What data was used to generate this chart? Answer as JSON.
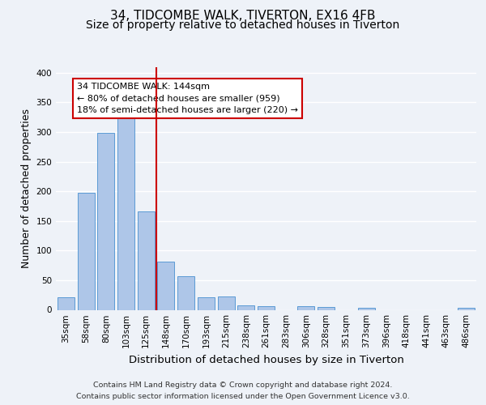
{
  "title": "34, TIDCOMBE WALK, TIVERTON, EX16 4FB",
  "subtitle": "Size of property relative to detached houses in Tiverton",
  "xlabel": "Distribution of detached houses by size in Tiverton",
  "ylabel": "Number of detached properties",
  "bar_labels": [
    "35sqm",
    "58sqm",
    "80sqm",
    "103sqm",
    "125sqm",
    "148sqm",
    "170sqm",
    "193sqm",
    "215sqm",
    "238sqm",
    "261sqm",
    "283sqm",
    "306sqm",
    "328sqm",
    "351sqm",
    "373sqm",
    "396sqm",
    "418sqm",
    "441sqm",
    "463sqm",
    "486sqm"
  ],
  "bar_values": [
    21,
    197,
    298,
    323,
    166,
    82,
    57,
    21,
    23,
    8,
    6,
    0,
    6,
    5,
    0,
    4,
    0,
    0,
    0,
    0,
    3
  ],
  "bar_color": "#aec6e8",
  "bar_edge_color": "#5b9bd5",
  "marker_index": 5,
  "marker_line_color": "#cc0000",
  "annotation_line1": "34 TIDCOMBE WALK: 144sqm",
  "annotation_line2": "← 80% of detached houses are smaller (959)",
  "annotation_line3": "18% of semi-detached houses are larger (220) →",
  "ylim": [
    0,
    410
  ],
  "yticks": [
    0,
    50,
    100,
    150,
    200,
    250,
    300,
    350,
    400
  ],
  "footer_line1": "Contains HM Land Registry data © Crown copyright and database right 2024.",
  "footer_line2": "Contains public sector information licensed under the Open Government Licence v3.0.",
  "bg_color": "#eef2f8",
  "plot_bg_color": "#eef2f8",
  "title_fontsize": 11,
  "subtitle_fontsize": 10,
  "axis_label_fontsize": 9,
  "tick_fontsize": 7.5,
  "footer_fontsize": 6.8,
  "annotation_fontsize": 8
}
